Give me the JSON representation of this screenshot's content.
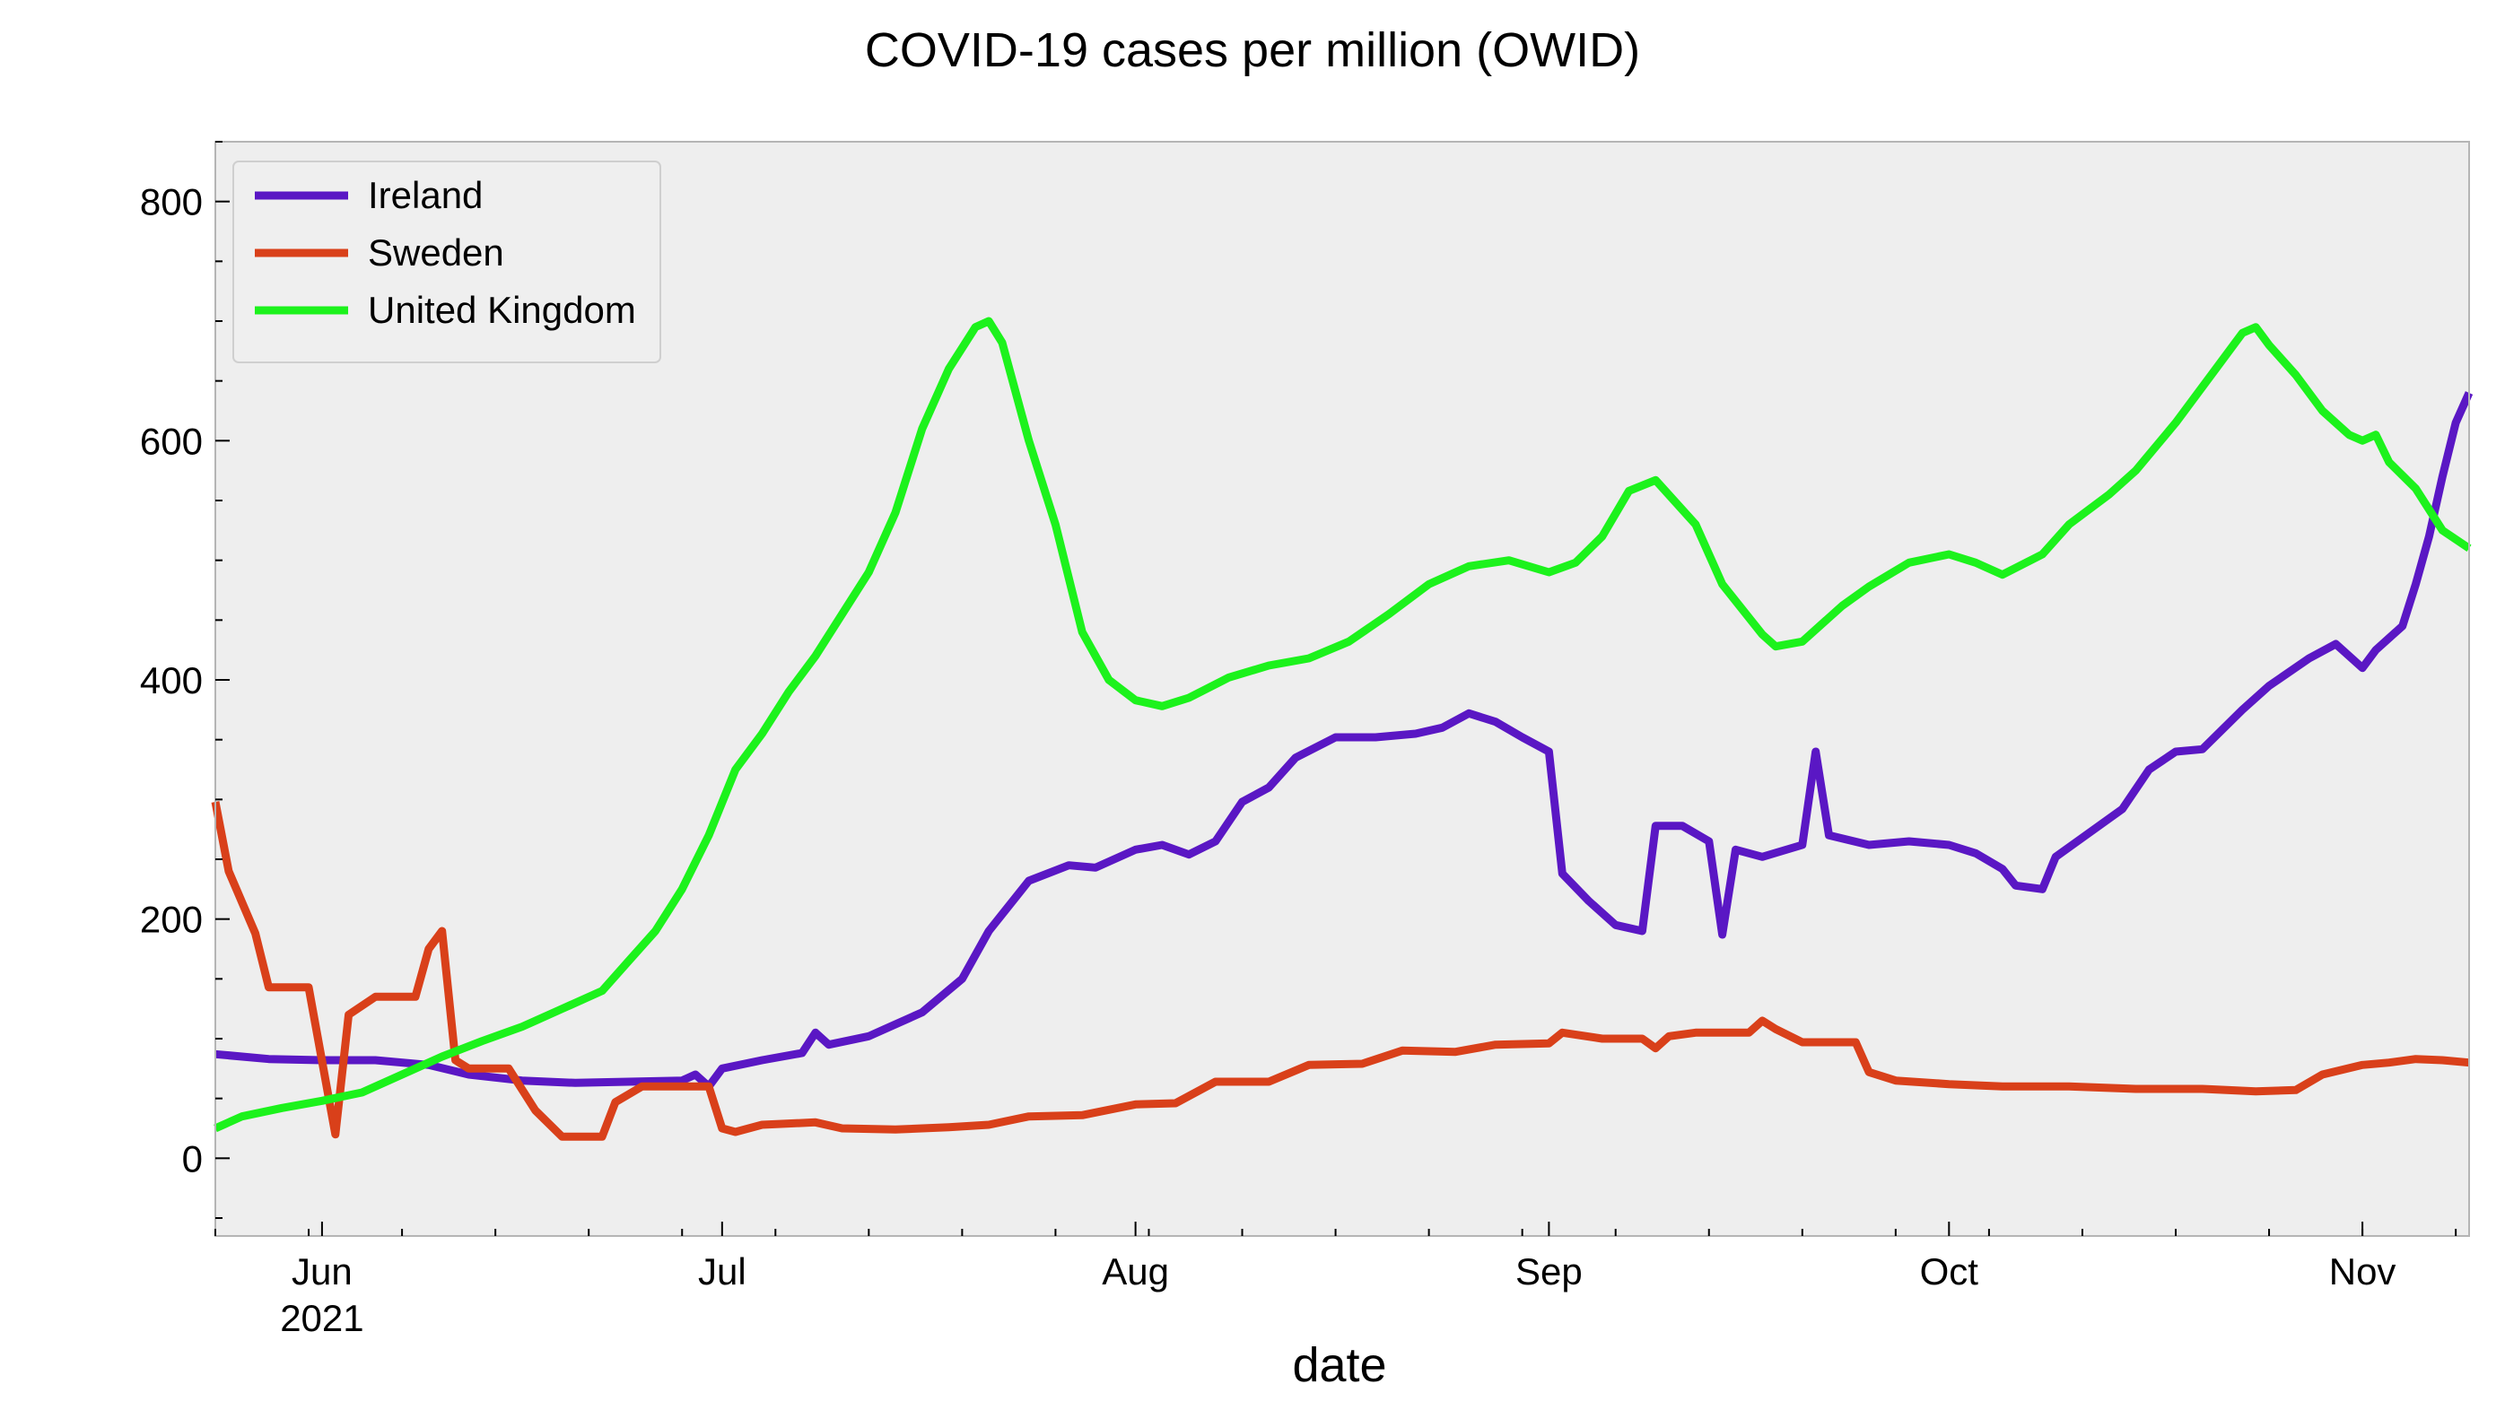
{
  "chart_data": {
    "type": "line",
    "title": "COVID-19 cases per million (OWID)",
    "xlabel": "date",
    "ylabel": "",
    "x_range": [
      "2021-05-24",
      "2021-11-09"
    ],
    "ylim": [
      -65,
      850
    ],
    "yticks": [
      0,
      200,
      400,
      600,
      800
    ],
    "xticks": [
      {
        "date": "2021-06-01",
        "label": "Jun",
        "sublabel": "2021"
      },
      {
        "date": "2021-07-01",
        "label": "Jul",
        "sublabel": ""
      },
      {
        "date": "2021-08-01",
        "label": "Aug",
        "sublabel": ""
      },
      {
        "date": "2021-09-01",
        "label": "Sep",
        "sublabel": ""
      },
      {
        "date": "2021-10-01",
        "label": "Oct",
        "sublabel": ""
      },
      {
        "date": "2021-11-01",
        "label": "Nov",
        "sublabel": ""
      }
    ],
    "grid": false,
    "legend_position": "top-left",
    "background": "#eeeeee",
    "series": [
      {
        "name": "Ireland",
        "color": "#5a17c4",
        "points": [
          [
            "2021-05-24",
            87
          ],
          [
            "2021-05-28",
            83
          ],
          [
            "2021-06-01",
            82
          ],
          [
            "2021-06-05",
            82
          ],
          [
            "2021-06-09",
            78
          ],
          [
            "2021-06-12",
            70
          ],
          [
            "2021-06-16",
            65
          ],
          [
            "2021-06-20",
            63
          ],
          [
            "2021-06-24",
            64
          ],
          [
            "2021-06-28",
            65
          ],
          [
            "2021-06-29",
            70
          ],
          [
            "2021-06-30",
            60
          ],
          [
            "2021-07-01",
            75
          ],
          [
            "2021-07-04",
            82
          ],
          [
            "2021-07-07",
            88
          ],
          [
            "2021-07-08",
            105
          ],
          [
            "2021-07-09",
            95
          ],
          [
            "2021-07-12",
            102
          ],
          [
            "2021-07-16",
            122
          ],
          [
            "2021-07-19",
            150
          ],
          [
            "2021-07-21",
            190
          ],
          [
            "2021-07-24",
            232
          ],
          [
            "2021-07-27",
            245
          ],
          [
            "2021-07-29",
            243
          ],
          [
            "2021-08-01",
            258
          ],
          [
            "2021-08-03",
            262
          ],
          [
            "2021-08-05",
            254
          ],
          [
            "2021-08-07",
            265
          ],
          [
            "2021-08-09",
            298
          ],
          [
            "2021-08-11",
            310
          ],
          [
            "2021-08-13",
            335
          ],
          [
            "2021-08-16",
            352
          ],
          [
            "2021-08-19",
            352
          ],
          [
            "2021-08-22",
            355
          ],
          [
            "2021-08-24",
            360
          ],
          [
            "2021-08-26",
            372
          ],
          [
            "2021-08-28",
            365
          ],
          [
            "2021-08-30",
            352
          ],
          [
            "2021-09-01",
            340
          ],
          [
            "2021-09-02",
            238
          ],
          [
            "2021-09-04",
            215
          ],
          [
            "2021-09-06",
            195
          ],
          [
            "2021-09-08",
            190
          ],
          [
            "2021-09-09",
            278
          ],
          [
            "2021-09-11",
            278
          ],
          [
            "2021-09-13",
            265
          ],
          [
            "2021-09-14",
            187
          ],
          [
            "2021-09-15",
            258
          ],
          [
            "2021-09-17",
            252
          ],
          [
            "2021-09-20",
            262
          ],
          [
            "2021-09-21",
            340
          ],
          [
            "2021-09-22",
            270
          ],
          [
            "2021-09-25",
            262
          ],
          [
            "2021-09-28",
            265
          ],
          [
            "2021-10-01",
            262
          ],
          [
            "2021-10-03",
            255
          ],
          [
            "2021-10-05",
            242
          ],
          [
            "2021-10-06",
            228
          ],
          [
            "2021-10-08",
            225
          ],
          [
            "2021-10-09",
            252
          ],
          [
            "2021-10-11",
            268
          ],
          [
            "2021-10-14",
            292
          ],
          [
            "2021-10-16",
            325
          ],
          [
            "2021-10-18",
            340
          ],
          [
            "2021-10-20",
            342
          ],
          [
            "2021-10-23",
            375
          ],
          [
            "2021-10-25",
            395
          ],
          [
            "2021-10-28",
            418
          ],
          [
            "2021-10-30",
            430
          ],
          [
            "2021-11-01",
            410
          ],
          [
            "2021-11-02",
            425
          ],
          [
            "2021-11-04",
            445
          ],
          [
            "2021-11-05",
            480
          ],
          [
            "2021-11-06",
            520
          ],
          [
            "2021-11-07",
            570
          ],
          [
            "2021-11-08",
            615
          ],
          [
            "2021-11-09",
            640
          ],
          [
            "2021-11-09",
            640
          ]
        ]
      },
      {
        "name": "Sweden",
        "color": "#d9401a",
        "points": [
          [
            "2021-05-24",
            298
          ],
          [
            "2021-05-25",
            240
          ],
          [
            "2021-05-27",
            188
          ],
          [
            "2021-05-28",
            143
          ],
          [
            "2021-05-31",
            143
          ],
          [
            "2021-06-02",
            20
          ],
          [
            "2021-06-03",
            120
          ],
          [
            "2021-06-05",
            135
          ],
          [
            "2021-06-08",
            135
          ],
          [
            "2021-06-09",
            175
          ],
          [
            "2021-06-10",
            190
          ],
          [
            "2021-06-11",
            82
          ],
          [
            "2021-06-12",
            75
          ],
          [
            "2021-06-15",
            75
          ],
          [
            "2021-06-17",
            40
          ],
          [
            "2021-06-19",
            18
          ],
          [
            "2021-06-22",
            18
          ],
          [
            "2021-06-23",
            47
          ],
          [
            "2021-06-25",
            60
          ],
          [
            "2021-06-30",
            60
          ],
          [
            "2021-07-01",
            25
          ],
          [
            "2021-07-02",
            22
          ],
          [
            "2021-07-04",
            28
          ],
          [
            "2021-07-08",
            30
          ],
          [
            "2021-07-10",
            25
          ],
          [
            "2021-07-14",
            24
          ],
          [
            "2021-07-18",
            26
          ],
          [
            "2021-07-21",
            28
          ],
          [
            "2021-07-24",
            35
          ],
          [
            "2021-07-28",
            36
          ],
          [
            "2021-08-01",
            45
          ],
          [
            "2021-08-04",
            46
          ],
          [
            "2021-08-07",
            64
          ],
          [
            "2021-08-11",
            64
          ],
          [
            "2021-08-14",
            78
          ],
          [
            "2021-08-18",
            79
          ],
          [
            "2021-08-21",
            90
          ],
          [
            "2021-08-25",
            89
          ],
          [
            "2021-08-28",
            95
          ],
          [
            "2021-09-01",
            96
          ],
          [
            "2021-09-02",
            105
          ],
          [
            "2021-09-05",
            100
          ],
          [
            "2021-09-08",
            100
          ],
          [
            "2021-09-09",
            92
          ],
          [
            "2021-09-10",
            102
          ],
          [
            "2021-09-12",
            105
          ],
          [
            "2021-09-16",
            105
          ],
          [
            "2021-09-17",
            115
          ],
          [
            "2021-09-18",
            108
          ],
          [
            "2021-09-20",
            97
          ],
          [
            "2021-09-24",
            97
          ],
          [
            "2021-09-25",
            72
          ],
          [
            "2021-09-27",
            65
          ],
          [
            "2021-10-01",
            62
          ],
          [
            "2021-10-05",
            60
          ],
          [
            "2021-10-10",
            60
          ],
          [
            "2021-10-15",
            58
          ],
          [
            "2021-10-20",
            58
          ],
          [
            "2021-10-24",
            56
          ],
          [
            "2021-10-27",
            57
          ],
          [
            "2021-10-29",
            70
          ],
          [
            "2021-11-01",
            78
          ],
          [
            "2021-11-03",
            80
          ],
          [
            "2021-11-05",
            83
          ],
          [
            "2021-11-07",
            82
          ],
          [
            "2021-11-09",
            80
          ]
        ]
      },
      {
        "name": "United Kingdom",
        "color": "#1cf21c",
        "points": [
          [
            "2021-05-24",
            25
          ],
          [
            "2021-05-26",
            35
          ],
          [
            "2021-05-29",
            42
          ],
          [
            "2021-06-01",
            48
          ],
          [
            "2021-06-04",
            55
          ],
          [
            "2021-06-07",
            70
          ],
          [
            "2021-06-10",
            85
          ],
          [
            "2021-06-13",
            98
          ],
          [
            "2021-06-16",
            110
          ],
          [
            "2021-06-19",
            125
          ],
          [
            "2021-06-22",
            140
          ],
          [
            "2021-06-24",
            165
          ],
          [
            "2021-06-26",
            190
          ],
          [
            "2021-06-28",
            225
          ],
          [
            "2021-06-30",
            270
          ],
          [
            "2021-07-02",
            325
          ],
          [
            "2021-07-04",
            355
          ],
          [
            "2021-07-06",
            390
          ],
          [
            "2021-07-08",
            420
          ],
          [
            "2021-07-10",
            455
          ],
          [
            "2021-07-12",
            490
          ],
          [
            "2021-07-14",
            540
          ],
          [
            "2021-07-16",
            610
          ],
          [
            "2021-07-18",
            660
          ],
          [
            "2021-07-20",
            695
          ],
          [
            "2021-07-21",
            700
          ],
          [
            "2021-07-22",
            682
          ],
          [
            "2021-07-24",
            600
          ],
          [
            "2021-07-26",
            530
          ],
          [
            "2021-07-28",
            440
          ],
          [
            "2021-07-30",
            400
          ],
          [
            "2021-08-01",
            383
          ],
          [
            "2021-08-03",
            378
          ],
          [
            "2021-08-05",
            385
          ],
          [
            "2021-08-08",
            402
          ],
          [
            "2021-08-11",
            412
          ],
          [
            "2021-08-14",
            418
          ],
          [
            "2021-08-17",
            432
          ],
          [
            "2021-08-20",
            455
          ],
          [
            "2021-08-23",
            480
          ],
          [
            "2021-08-26",
            495
          ],
          [
            "2021-08-29",
            500
          ],
          [
            "2021-09-01",
            490
          ],
          [
            "2021-09-03",
            498
          ],
          [
            "2021-09-05",
            520
          ],
          [
            "2021-09-07",
            558
          ],
          [
            "2021-09-09",
            567
          ],
          [
            "2021-09-12",
            530
          ],
          [
            "2021-09-14",
            480
          ],
          [
            "2021-09-17",
            438
          ],
          [
            "2021-09-18",
            428
          ],
          [
            "2021-09-20",
            432
          ],
          [
            "2021-09-23",
            462
          ],
          [
            "2021-09-25",
            478
          ],
          [
            "2021-09-28",
            498
          ],
          [
            "2021-10-01",
            505
          ],
          [
            "2021-10-03",
            498
          ],
          [
            "2021-10-05",
            488
          ],
          [
            "2021-10-08",
            505
          ],
          [
            "2021-10-10",
            530
          ],
          [
            "2021-10-13",
            555
          ],
          [
            "2021-10-15",
            575
          ],
          [
            "2021-10-18",
            615
          ],
          [
            "2021-10-21",
            660
          ],
          [
            "2021-10-23",
            690
          ],
          [
            "2021-10-24",
            695
          ],
          [
            "2021-10-25",
            680
          ],
          [
            "2021-10-27",
            655
          ],
          [
            "2021-10-29",
            625
          ],
          [
            "2021-10-31",
            605
          ],
          [
            "2021-11-01",
            600
          ],
          [
            "2021-11-02",
            605
          ],
          [
            "2021-11-03",
            582
          ],
          [
            "2021-11-05",
            560
          ],
          [
            "2021-11-07",
            525
          ],
          [
            "2021-11-09",
            510
          ]
        ]
      }
    ]
  }
}
